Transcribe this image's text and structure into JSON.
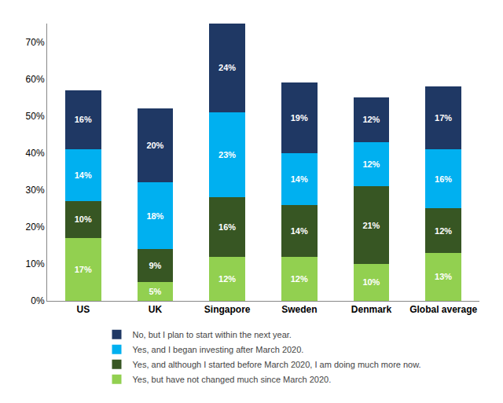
{
  "chart_data": {
    "type": "bar",
    "stacked": true,
    "categories": [
      "US",
      "UK",
      "Singapore",
      "Sweden",
      "Denmark",
      "Global average"
    ],
    "series": [
      {
        "name": "Yes, but have not changed much since March 2020.",
        "color": "#92d050",
        "values": [
          17,
          5,
          12,
          12,
          10,
          13
        ],
        "value_labels": [
          "17%",
          "5%",
          "12%",
          "12%",
          "10%",
          "13%"
        ]
      },
      {
        "name": "Yes, and although I started before March 2020, I am doing much more now.",
        "color": "#375623",
        "values": [
          10,
          9,
          16,
          14,
          21,
          12
        ],
        "value_labels": [
          "10%",
          "9%",
          "16%",
          "14%",
          "21%",
          "12%"
        ]
      },
      {
        "name": "Yes, and I began investing after March 2020.",
        "color": "#00b0f0",
        "values": [
          14,
          18,
          23,
          14,
          12,
          16
        ],
        "value_labels": [
          "14%",
          "18%",
          "23%",
          "14%",
          "12%",
          "16%"
        ]
      },
      {
        "name": "No, but I plan to start within the next year.",
        "color": "#1f3864",
        "values": [
          16,
          20,
          24,
          19,
          12,
          17
        ],
        "value_labels": [
          "16%",
          "20%",
          "24%",
          "19%",
          "12%",
          "17%"
        ]
      }
    ],
    "ylim": [
      0,
      75
    ],
    "yticks": [
      {
        "value": 0,
        "label": "0%"
      },
      {
        "value": 10,
        "label": "10%"
      },
      {
        "value": 20,
        "label": "20%"
      },
      {
        "value": 30,
        "label": "30%"
      },
      {
        "value": 40,
        "label": "40%"
      },
      {
        "value": 50,
        "label": "50%"
      },
      {
        "value": 60,
        "label": "60%"
      },
      {
        "value": 70,
        "label": "70%"
      }
    ],
    "grid": false,
    "legend": "bottom",
    "data_labels": true
  }
}
